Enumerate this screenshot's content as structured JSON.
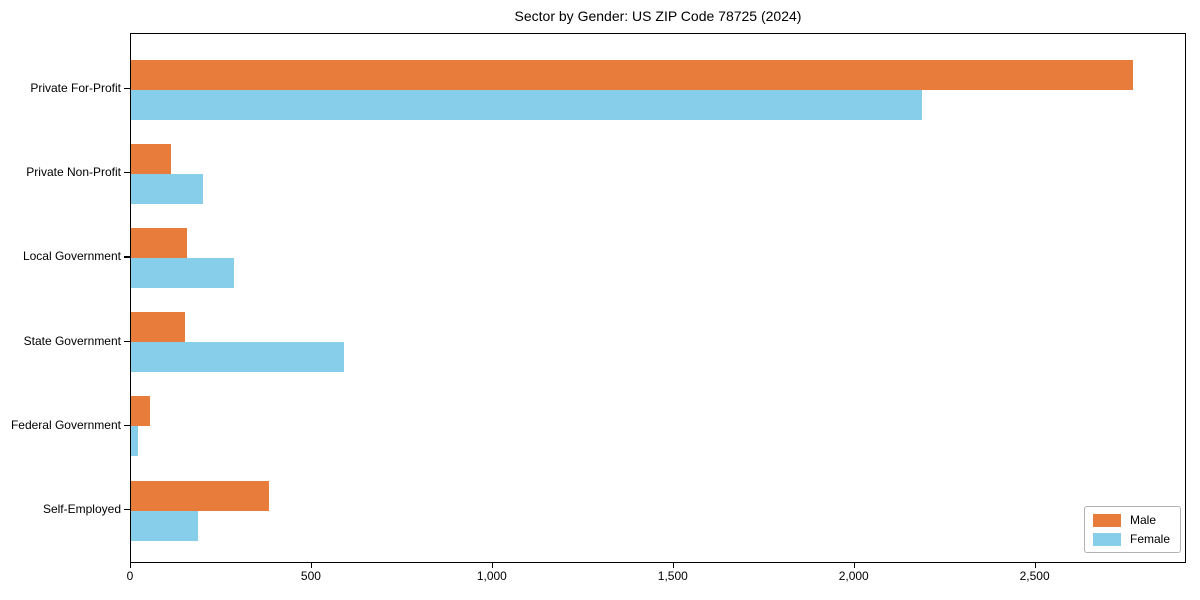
{
  "chart_data": {
    "type": "bar",
    "orientation": "horizontal",
    "title": "Sector by Gender: US ZIP Code 78725 (2024)",
    "categories": [
      "Private For-Profit",
      "Private Non-Profit",
      "Local Government",
      "State Government",
      "Federal Government",
      "Self-Employed"
    ],
    "series": [
      {
        "name": "Male",
        "color": "#e87d3b",
        "values": [
          2770,
          110,
          155,
          150,
          52,
          380
        ]
      },
      {
        "name": "Female",
        "color": "#87ceeb",
        "values": [
          2185,
          200,
          285,
          590,
          18,
          186
        ]
      }
    ],
    "xlabel": "",
    "ylabel": "",
    "xlim": [
      0,
      2910
    ],
    "xticks": {
      "values": [
        0,
        500,
        1000,
        1500,
        2000,
        2500
      ],
      "labels": [
        "0",
        "500",
        "1,000",
        "1,500",
        "2,000",
        "2,500"
      ]
    },
    "grid": false,
    "legend_position": "lower right",
    "frame_color": "#000000",
    "background_color": "#ffffff"
  }
}
